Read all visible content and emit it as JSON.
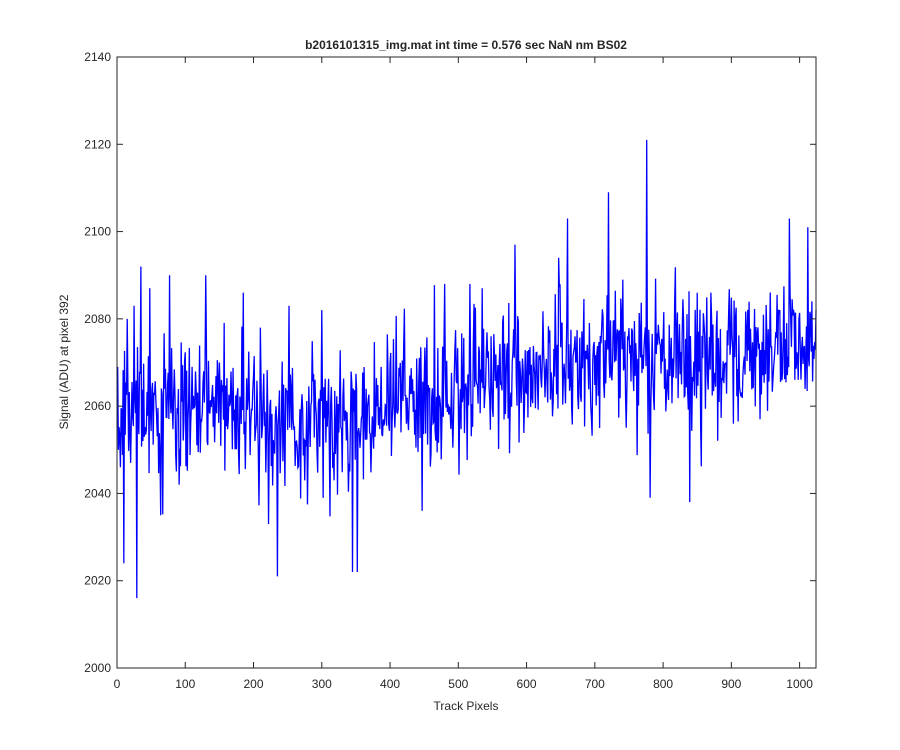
{
  "chart_data": {
    "type": "line",
    "title": "b2016101315_img.mat int time = 0.576 sec  NaN nm BS02",
    "xlabel": "Track Pixels",
    "ylabel": "Signal (ADU) at pixel 392",
    "xlim": [
      0,
      1024
    ],
    "ylim": [
      2000,
      2140
    ],
    "xticks": [
      0,
      100,
      200,
      300,
      400,
      500,
      600,
      700,
      800,
      900,
      1000
    ],
    "yticks": [
      2000,
      2020,
      2040,
      2060,
      2080,
      2100,
      2120,
      2140
    ],
    "grid": false,
    "box": true,
    "series": [
      {
        "color": "#0000ff",
        "x_start": 1,
        "x_step": 1,
        "trend": [
          [
            0,
            2058
          ],
          [
            150,
            2061
          ],
          [
            250,
            2056
          ],
          [
            330,
            2054
          ],
          [
            380,
            2060
          ],
          [
            500,
            2065
          ],
          [
            650,
            2070
          ],
          [
            800,
            2071
          ],
          [
            1024,
            2073
          ]
        ],
        "noise_std": 10,
        "values_sampled": [
          [
            1,
            2069
          ],
          [
            5,
            2046
          ],
          [
            10,
            2024
          ],
          [
            15,
            2080
          ],
          [
            20,
            2047
          ],
          [
            25,
            2083
          ],
          [
            29,
            2016
          ],
          [
            35,
            2092
          ],
          [
            40,
            2053
          ],
          [
            48,
            2087
          ],
          [
            57,
            2061
          ],
          [
            64,
            2035
          ],
          [
            70,
            2064
          ],
          [
            77,
            2090
          ],
          [
            85,
            2062
          ],
          [
            95,
            2061
          ],
          [
            110,
            2069
          ],
          [
            130,
            2090
          ],
          [
            150,
            2070
          ],
          [
            165,
            2060
          ],
          [
            185,
            2086
          ],
          [
            210,
            2078
          ],
          [
            222,
            2033
          ],
          [
            235,
            2021
          ],
          [
            252,
            2083
          ],
          [
            275,
            2043
          ],
          [
            300,
            2082
          ],
          [
            318,
            2043
          ],
          [
            335,
            2059
          ],
          [
            345,
            2022
          ],
          [
            352,
            2022
          ],
          [
            367,
            2060
          ],
          [
            387,
            2069
          ],
          [
            420,
            2074
          ],
          [
            447,
            2036
          ],
          [
            480,
            2088
          ],
          [
            500,
            2062
          ],
          [
            517,
            2088
          ],
          [
            535,
            2087
          ],
          [
            560,
            2070
          ],
          [
            583,
            2097
          ],
          [
            600,
            2063
          ],
          [
            627,
            2062
          ],
          [
            647,
            2094
          ],
          [
            660,
            2103
          ],
          [
            690,
            2070
          ],
          [
            707,
            2055
          ],
          [
            720,
            2109
          ],
          [
            740,
            2073
          ],
          [
            761,
            2070
          ],
          [
            776,
            2121
          ],
          [
            781,
            2039
          ],
          [
            800,
            2075
          ],
          [
            823,
            2072
          ],
          [
            839,
            2038
          ],
          [
            870,
            2086
          ],
          [
            892,
            2070
          ],
          [
            918,
            2070
          ],
          [
            942,
            2057
          ],
          [
            976,
            2075
          ],
          [
            985,
            2103
          ],
          [
            999,
            2080
          ],
          [
            1012,
            2101
          ],
          [
            1018,
            2084
          ],
          [
            1024,
            2082
          ]
        ]
      }
    ]
  }
}
